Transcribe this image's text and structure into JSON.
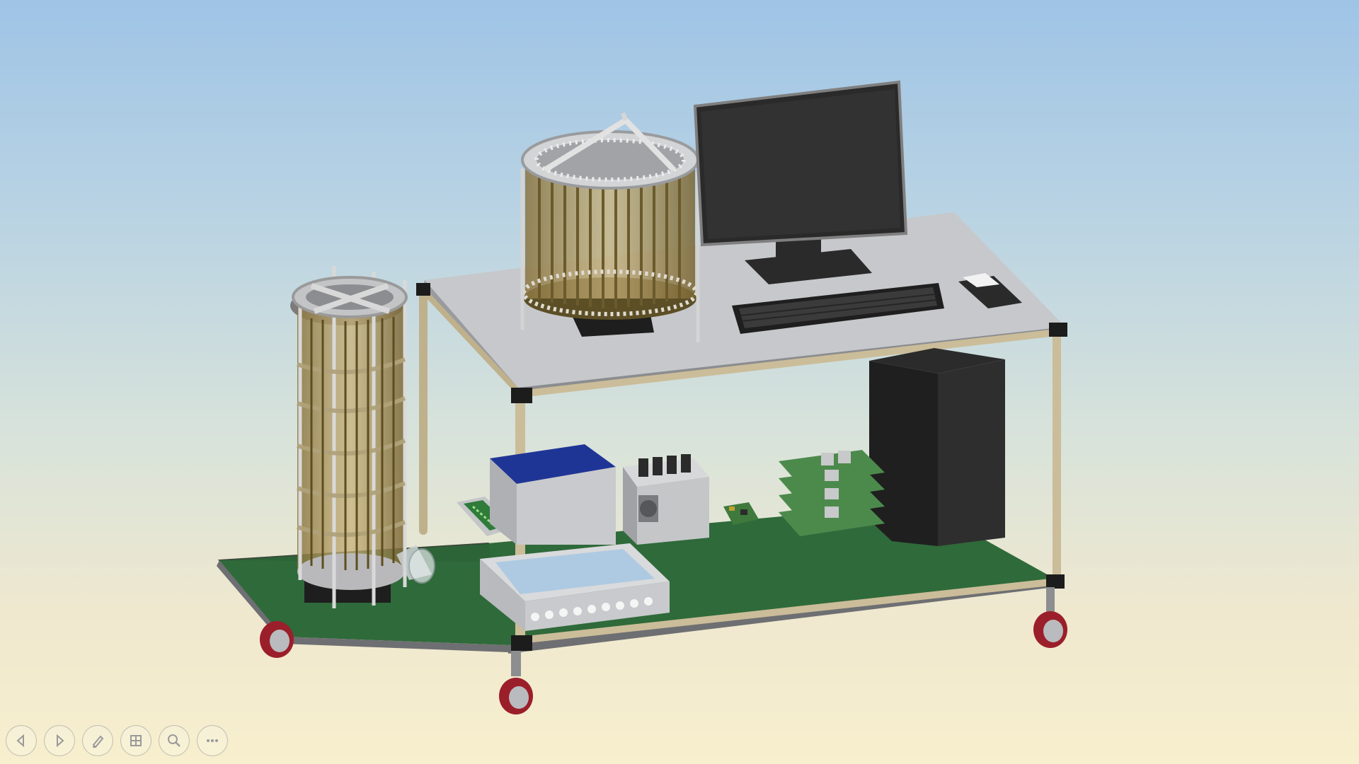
{
  "window": {
    "title": ""
  },
  "scene": {
    "description_visible_text": "",
    "components": [
      "tall-gas-detector",
      "wide-gas-detector",
      "monitor",
      "keyboard",
      "mouse",
      "pc-tower",
      "blue-power-supply",
      "hv-module",
      "front-panel-module",
      "stacked-circuit-boards",
      "small-circuit-board",
      "green-pcb-tray",
      "glass-flask",
      "cart-frame",
      "caster-wheels"
    ]
  },
  "toolbar": {
    "buttons": [
      {
        "name": "previous",
        "icon": "arrow-left-icon"
      },
      {
        "name": "next",
        "icon": "arrow-right-icon"
      },
      {
        "name": "pen",
        "icon": "pen-icon"
      },
      {
        "name": "slides",
        "icon": "slides-grid-icon"
      },
      {
        "name": "zoom",
        "icon": "magnifier-icon"
      },
      {
        "name": "more",
        "icon": "more-dots-icon"
      }
    ]
  },
  "colors": {
    "sky_top": "#9fc4e6",
    "sky_bottom": "#f7efcd",
    "shelf_green": "#2f6a3a",
    "tabletop": "#c7c8cb",
    "frame_tube": "#cbbd99",
    "detector_gold": "#a89050"
  }
}
